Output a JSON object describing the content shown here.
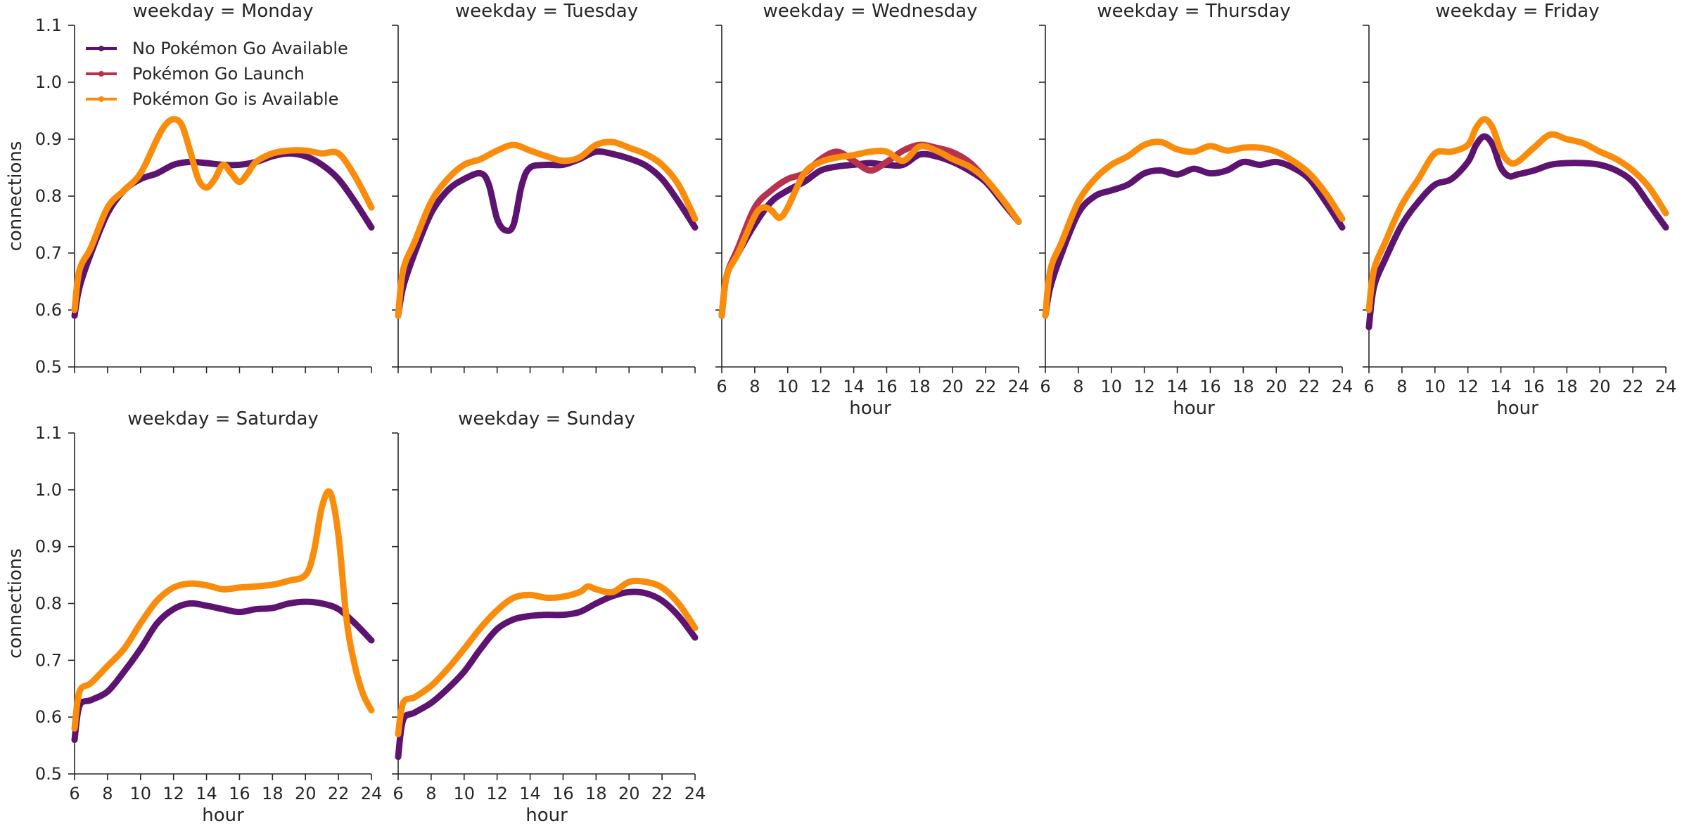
{
  "chart_data": {
    "type": "line",
    "figure": "facet grid of smoothed line charts",
    "xlabel": "hour",
    "ylabel": "connections",
    "xlim": [
      6,
      24
    ],
    "ylim": [
      0.5,
      1.1
    ],
    "xticks": [
      6,
      8,
      10,
      12,
      14,
      16,
      18,
      20,
      22,
      24
    ],
    "yticks": [
      0.5,
      0.6,
      0.7,
      0.8,
      0.9,
      1.0,
      1.1
    ],
    "ytick_labels": [
      "0.5",
      "0.6",
      "0.7",
      "0.8",
      "0.9",
      "1.0",
      "1.1"
    ],
    "legend": {
      "placement": "top-left of first panel",
      "entries": [
        {
          "name": "No Pokémon Go Available",
          "color": "#5c1470"
        },
        {
          "name": "Pokémon Go Launch",
          "color": "#b8324f"
        },
        {
          "name": "Pokémon Go is Available",
          "color": "#f98c0a"
        }
      ]
    },
    "panels": [
      {
        "title": "weekday = Monday",
        "series": [
          {
            "name": "No Pokémon Go Available",
            "x": [
              6,
              6.3,
              7,
              8,
              9,
              10,
              11,
              12,
              13,
              14,
              15,
              16,
              17,
              18,
              19,
              20,
              21,
              22,
              23,
              24
            ],
            "y": [
              0.59,
              0.64,
              0.7,
              0.77,
              0.81,
              0.83,
              0.84,
              0.855,
              0.86,
              0.858,
              0.855,
              0.855,
              0.86,
              0.87,
              0.875,
              0.87,
              0.855,
              0.83,
              0.79,
              0.745
            ]
          },
          {
            "name": "Pokémon Go is Available",
            "x": [
              6,
              6.3,
              7,
              8,
              9,
              10,
              11,
              11.5,
              12,
              12.5,
              13,
              13.5,
              14,
              14.5,
              15,
              15.5,
              16,
              16.5,
              17,
              18,
              19,
              20,
              21,
              22,
              23,
              24
            ],
            "y": [
              0.6,
              0.67,
              0.71,
              0.78,
              0.81,
              0.84,
              0.9,
              0.925,
              0.935,
              0.925,
              0.88,
              0.83,
              0.815,
              0.83,
              0.855,
              0.84,
              0.825,
              0.84,
              0.86,
              0.875,
              0.88,
              0.88,
              0.875,
              0.875,
              0.835,
              0.78
            ]
          }
        ]
      },
      {
        "title": "weekday = Tuesday",
        "series": [
          {
            "name": "No Pokémon Go Available",
            "x": [
              6,
              6.3,
              7,
              8,
              9,
              10,
              11,
              11.5,
              12,
              12.5,
              13,
              13.5,
              14,
              15,
              16,
              17,
              18,
              19,
              20,
              21,
              22,
              23,
              24
            ],
            "y": [
              0.59,
              0.64,
              0.7,
              0.77,
              0.81,
              0.83,
              0.84,
              0.82,
              0.76,
              0.74,
              0.75,
              0.82,
              0.85,
              0.855,
              0.855,
              0.865,
              0.878,
              0.874,
              0.866,
              0.854,
              0.83,
              0.79,
              0.745
            ]
          },
          {
            "name": "Pokémon Go is Available",
            "x": [
              6,
              6.3,
              7,
              8,
              9,
              10,
              11,
              12,
              13,
              14,
              15,
              16,
              17,
              18,
              19,
              20,
              21,
              22,
              23,
              24
            ],
            "y": [
              0.59,
              0.67,
              0.72,
              0.79,
              0.83,
              0.855,
              0.865,
              0.88,
              0.89,
              0.88,
              0.87,
              0.862,
              0.868,
              0.89,
              0.895,
              0.885,
              0.874,
              0.855,
              0.82,
              0.76
            ]
          }
        ]
      },
      {
        "title": "weekday = Wednesday",
        "series": [
          {
            "name": "No Pokémon Go Available",
            "x": [
              6,
              6.3,
              7,
              8,
              9,
              10,
              11,
              12,
              13,
              14,
              15,
              16,
              17,
              18,
              19,
              20,
              21,
              22,
              23,
              24
            ],
            "y": [
              0.59,
              0.66,
              0.7,
              0.75,
              0.79,
              0.81,
              0.825,
              0.845,
              0.852,
              0.855,
              0.858,
              0.855,
              0.855,
              0.873,
              0.87,
              0.86,
              0.845,
              0.825,
              0.79,
              0.755
            ]
          },
          {
            "name": "Pokémon Go Launch",
            "x": [
              6,
              6.3,
              7,
              8,
              9,
              10,
              11,
              12,
              13,
              14,
              15,
              16,
              17,
              18,
              19,
              20,
              21,
              22,
              23,
              24
            ],
            "y": [
              0.59,
              0.66,
              0.71,
              0.78,
              0.81,
              0.83,
              0.84,
              0.865,
              0.878,
              0.862,
              0.845,
              0.86,
              0.88,
              0.89,
              0.885,
              0.877,
              0.86,
              0.83,
              0.795,
              0.755
            ]
          },
          {
            "name": "Pokémon Go is Available",
            "x": [
              6,
              6.3,
              7,
              8,
              8.5,
              9,
              9.5,
              10,
              11,
              12,
              13,
              14,
              15,
              16,
              17,
              18,
              19,
              20,
              21,
              22,
              23,
              24
            ],
            "y": [
              0.59,
              0.66,
              0.7,
              0.765,
              0.78,
              0.775,
              0.762,
              0.78,
              0.84,
              0.86,
              0.868,
              0.872,
              0.878,
              0.878,
              0.862,
              0.887,
              0.88,
              0.865,
              0.852,
              0.83,
              0.795,
              0.755
            ]
          }
        ]
      },
      {
        "title": "weekday = Thursday",
        "series": [
          {
            "name": "No Pokémon Go Available",
            "x": [
              6,
              6.3,
              7,
              8,
              9,
              10,
              11,
              12,
              13,
              14,
              15,
              16,
              17,
              18,
              19,
              20,
              21,
              22,
              23,
              24
            ],
            "y": [
              0.59,
              0.64,
              0.7,
              0.77,
              0.8,
              0.81,
              0.82,
              0.84,
              0.845,
              0.838,
              0.848,
              0.84,
              0.845,
              0.86,
              0.855,
              0.86,
              0.85,
              0.83,
              0.79,
              0.745
            ]
          },
          {
            "name": "Pokémon Go is Available",
            "x": [
              6,
              6.3,
              7,
              8,
              9,
              10,
              11,
              12,
              13,
              14,
              15,
              16,
              17,
              18,
              19,
              20,
              21,
              22,
              23,
              24
            ],
            "y": [
              0.59,
              0.67,
              0.72,
              0.79,
              0.83,
              0.855,
              0.87,
              0.89,
              0.895,
              0.882,
              0.878,
              0.888,
              0.88,
              0.885,
              0.885,
              0.878,
              0.862,
              0.84,
              0.805,
              0.76
            ]
          }
        ]
      },
      {
        "title": "weekday = Friday",
        "series": [
          {
            "name": "No Pokémon Go Available",
            "x": [
              6,
              6.3,
              7,
              8,
              9,
              10,
              11,
              12,
              12.5,
              13,
              13.5,
              14,
              14.5,
              15,
              16,
              17,
              18,
              19,
              20,
              21,
              22,
              23,
              24
            ],
            "y": [
              0.57,
              0.64,
              0.69,
              0.75,
              0.79,
              0.82,
              0.83,
              0.86,
              0.89,
              0.905,
              0.89,
              0.85,
              0.835,
              0.838,
              0.845,
              0.855,
              0.858,
              0.858,
              0.855,
              0.845,
              0.825,
              0.785,
              0.745
            ]
          },
          {
            "name": "Pokémon Go is Available",
            "x": [
              6,
              6.3,
              7,
              8,
              9,
              10,
              11,
              12,
              12.5,
              13,
              13.5,
              14,
              14.5,
              15,
              16,
              17,
              18,
              19,
              20,
              21,
              22,
              23,
              24
            ],
            "y": [
              0.6,
              0.67,
              0.72,
              0.785,
              0.83,
              0.875,
              0.878,
              0.89,
              0.92,
              0.935,
              0.92,
              0.88,
              0.86,
              0.86,
              0.885,
              0.908,
              0.9,
              0.893,
              0.878,
              0.865,
              0.845,
              0.815,
              0.77
            ]
          }
        ]
      },
      {
        "title": "weekday = Saturday",
        "series": [
          {
            "name": "No Pokémon Go Available",
            "x": [
              6,
              6.3,
              7,
              8,
              9,
              10,
              11,
              12,
              13,
              14,
              15,
              16,
              17,
              18,
              19,
              20,
              21,
              22,
              23,
              24
            ],
            "y": [
              0.56,
              0.62,
              0.63,
              0.645,
              0.68,
              0.72,
              0.765,
              0.79,
              0.8,
              0.796,
              0.79,
              0.785,
              0.79,
              0.792,
              0.8,
              0.803,
              0.8,
              0.79,
              0.765,
              0.735
            ]
          },
          {
            "name": "Pokémon Go is Available",
            "x": [
              6,
              6.3,
              7,
              8,
              9,
              10,
              11,
              12,
              13,
              14,
              15,
              16,
              17,
              18,
              19,
              20,
              20.5,
              21,
              21.5,
              22,
              22.5,
              23,
              23.5,
              24
            ],
            "y": [
              0.58,
              0.645,
              0.66,
              0.69,
              0.72,
              0.765,
              0.805,
              0.828,
              0.835,
              0.832,
              0.825,
              0.828,
              0.83,
              0.833,
              0.84,
              0.85,
              0.89,
              0.97,
              0.995,
              0.92,
              0.77,
              0.69,
              0.64,
              0.612
            ]
          }
        ]
      },
      {
        "title": "weekday = Sunday",
        "series": [
          {
            "name": "No Pokémon Go Available",
            "x": [
              6,
              6.3,
              7,
              8,
              9,
              10,
              11,
              12,
              13,
              14,
              15,
              16,
              17,
              18,
              19,
              20,
              21,
              22,
              23,
              24
            ],
            "y": [
              0.53,
              0.595,
              0.608,
              0.625,
              0.65,
              0.68,
              0.72,
              0.755,
              0.772,
              0.778,
              0.78,
              0.78,
              0.785,
              0.8,
              0.813,
              0.82,
              0.818,
              0.805,
              0.778,
              0.74
            ]
          },
          {
            "name": "Pokémon Go is Available",
            "x": [
              6,
              6.3,
              7,
              8,
              9,
              10,
              11,
              12,
              13,
              14,
              15,
              16,
              17,
              17.5,
              18,
              19,
              20,
              21,
              22,
              23,
              24
            ],
            "y": [
              0.57,
              0.625,
              0.635,
              0.655,
              0.685,
              0.72,
              0.757,
              0.788,
              0.81,
              0.815,
              0.81,
              0.812,
              0.82,
              0.83,
              0.825,
              0.82,
              0.838,
              0.838,
              0.828,
              0.8,
              0.757
            ]
          }
        ]
      }
    ]
  }
}
